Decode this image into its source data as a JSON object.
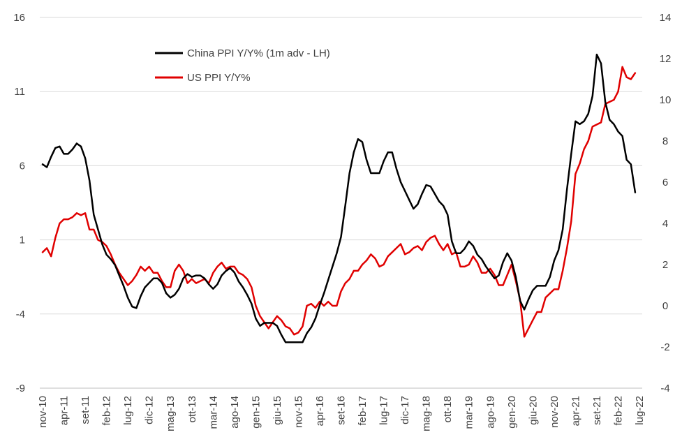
{
  "chart_data": {
    "type": "line",
    "title": "",
    "xlabel": "",
    "ylabel": "",
    "y2label": "",
    "x_tick_labels": [
      "nov-10",
      "apr-11",
      "set-11",
      "feb-12",
      "lug-12",
      "dic-12",
      "mag-13",
      "ott-13",
      "mar-14",
      "ago-14",
      "gen-15",
      "giu-15",
      "nov-15",
      "apr-16",
      "set-16",
      "feb-17",
      "lug-17",
      "dic-17",
      "mag-18",
      "ott-18",
      "mar-19",
      "ago-19",
      "gen-20",
      "giu-20",
      "nov-20",
      "apr-21",
      "set-21",
      "feb-22",
      "lug-22"
    ],
    "y_left": {
      "ticks": [
        16,
        11,
        6,
        1,
        -4,
        -9
      ],
      "ylim": [
        -9,
        16
      ]
    },
    "y_right": {
      "ticks": [
        14,
        12,
        10,
        8,
        6,
        4,
        2,
        0,
        -2,
        -4
      ],
      "ylim": [
        -4,
        14
      ]
    },
    "grid": true,
    "legend": {
      "position": "top-left",
      "entries": [
        "China PPI Y/Y% (1m adv - LH)",
        "US PPI Y/Y%"
      ]
    },
    "series": [
      {
        "name": "China PPI Y/Y% (1m adv - LH)",
        "axis": "left",
        "color": "#000000",
        "points": [
          [
            "nov-10",
            6.1
          ],
          [
            "dic-10",
            5.9
          ],
          [
            "gen-11",
            6.6
          ],
          [
            "feb-11",
            7.2
          ],
          [
            "mar-11",
            7.3
          ],
          [
            "apr-11",
            6.8
          ],
          [
            "mag-11",
            6.8
          ],
          [
            "giu-11",
            7.1
          ],
          [
            "lug-11",
            7.5
          ],
          [
            "ago-11",
            7.3
          ],
          [
            "set-11",
            6.5
          ],
          [
            "ott-11",
            5.0
          ],
          [
            "nov-11",
            2.7
          ],
          [
            "dic-11",
            1.7
          ],
          [
            "gen-12",
            0.7
          ],
          [
            "feb-12",
            0.0
          ],
          [
            "mar-12",
            -0.3
          ],
          [
            "apr-12",
            -0.7
          ],
          [
            "mag-12",
            -1.4
          ],
          [
            "giu-12",
            -2.1
          ],
          [
            "lug-12",
            -2.9
          ],
          [
            "ago-12",
            -3.5
          ],
          [
            "set-12",
            -3.6
          ],
          [
            "ott-12",
            -2.8
          ],
          [
            "nov-12",
            -2.2
          ],
          [
            "dic-12",
            -1.9
          ],
          [
            "gen-13",
            -1.6
          ],
          [
            "feb-13",
            -1.6
          ],
          [
            "mar-13",
            -1.9
          ],
          [
            "apr-13",
            -2.6
          ],
          [
            "mag-13",
            -2.9
          ],
          [
            "giu-13",
            -2.7
          ],
          [
            "lug-13",
            -2.3
          ],
          [
            "ago-13",
            -1.6
          ],
          [
            "set-13",
            -1.3
          ],
          [
            "ott-13",
            -1.5
          ],
          [
            "nov-13",
            -1.4
          ],
          [
            "dic-13",
            -1.4
          ],
          [
            "gen-14",
            -1.6
          ],
          [
            "feb-14",
            -2.0
          ],
          [
            "mar-14",
            -2.3
          ],
          [
            "apr-14",
            -2.0
          ],
          [
            "mag-14",
            -1.4
          ],
          [
            "giu-14",
            -1.1
          ],
          [
            "lug-14",
            -0.9
          ],
          [
            "ago-14",
            -1.2
          ],
          [
            "set-14",
            -1.8
          ],
          [
            "ott-14",
            -2.2
          ],
          [
            "nov-14",
            -2.7
          ],
          [
            "dic-14",
            -3.3
          ],
          [
            "gen-15",
            -4.3
          ],
          [
            "feb-15",
            -4.8
          ],
          [
            "mar-15",
            -4.6
          ],
          [
            "apr-15",
            -4.6
          ],
          [
            "mag-15",
            -4.6
          ],
          [
            "giu-15",
            -4.8
          ],
          [
            "lug-15",
            -5.4
          ],
          [
            "ago-15",
            -5.9
          ],
          [
            "set-15",
            -5.9
          ],
          [
            "ott-15",
            -5.9
          ],
          [
            "nov-15",
            -5.9
          ],
          [
            "dic-15",
            -5.9
          ],
          [
            "gen-16",
            -5.3
          ],
          [
            "feb-16",
            -4.9
          ],
          [
            "mar-16",
            -4.3
          ],
          [
            "apr-16",
            -3.4
          ],
          [
            "mag-16",
            -2.6
          ],
          [
            "giu-16",
            -1.7
          ],
          [
            "lug-16",
            -0.8
          ],
          [
            "ago-16",
            0.1
          ],
          [
            "set-16",
            1.2
          ],
          [
            "ott-16",
            3.3
          ],
          [
            "nov-16",
            5.5
          ],
          [
            "dic-16",
            6.9
          ],
          [
            "gen-17",
            7.8
          ],
          [
            "feb-17",
            7.6
          ],
          [
            "mar-17",
            6.4
          ],
          [
            "apr-17",
            5.5
          ],
          [
            "mag-17",
            5.5
          ],
          [
            "giu-17",
            5.5
          ],
          [
            "lug-17",
            6.3
          ],
          [
            "ago-17",
            6.9
          ],
          [
            "set-17",
            6.9
          ],
          [
            "ott-17",
            5.8
          ],
          [
            "nov-17",
            4.9
          ],
          [
            "dic-17",
            4.3
          ],
          [
            "gen-18",
            3.7
          ],
          [
            "feb-18",
            3.1
          ],
          [
            "mar-18",
            3.4
          ],
          [
            "apr-18",
            4.1
          ],
          [
            "mag-18",
            4.7
          ],
          [
            "giu-18",
            4.6
          ],
          [
            "lug-18",
            4.1
          ],
          [
            "ago-18",
            3.6
          ],
          [
            "set-18",
            3.3
          ],
          [
            "ott-18",
            2.7
          ],
          [
            "nov-18",
            0.9
          ],
          [
            "dic-18",
            0.1
          ],
          [
            "gen-19",
            0.1
          ],
          [
            "feb-19",
            0.4
          ],
          [
            "mar-19",
            0.9
          ],
          [
            "apr-19",
            0.6
          ],
          [
            "mag-19",
            0.0
          ],
          [
            "giu-19",
            -0.3
          ],
          [
            "lug-19",
            -0.8
          ],
          [
            "ago-19",
            -1.2
          ],
          [
            "set-19",
            -1.6
          ],
          [
            "ott-19",
            -1.4
          ],
          [
            "nov-19",
            -0.5
          ],
          [
            "dic-19",
            0.1
          ],
          [
            "gen-20",
            -0.4
          ],
          [
            "feb-20",
            -1.5
          ],
          [
            "mar-20",
            -3.1
          ],
          [
            "apr-20",
            -3.7
          ],
          [
            "mag-20",
            -3.0
          ],
          [
            "giu-20",
            -2.4
          ],
          [
            "lug-20",
            -2.1
          ],
          [
            "ago-20",
            -2.1
          ],
          [
            "set-20",
            -2.1
          ],
          [
            "ott-20",
            -1.5
          ],
          [
            "nov-20",
            -0.4
          ],
          [
            "dic-20",
            0.3
          ],
          [
            "gen-21",
            1.7
          ],
          [
            "feb-21",
            4.4
          ],
          [
            "mar-21",
            6.8
          ],
          [
            "apr-21",
            9.0
          ],
          [
            "mag-21",
            8.8
          ],
          [
            "giu-21",
            9.0
          ],
          [
            "lug-21",
            9.5
          ],
          [
            "ago-21",
            10.7
          ],
          [
            "set-21",
            13.5
          ],
          [
            "ott-21",
            12.9
          ],
          [
            "nov-21",
            10.3
          ],
          [
            "dic-21",
            9.1
          ],
          [
            "gen-22",
            8.8
          ],
          [
            "feb-22",
            8.3
          ],
          [
            "mar-22",
            8.0
          ],
          [
            "apr-22",
            6.4
          ],
          [
            "mag-22",
            6.1
          ],
          [
            "giu-22",
            4.2
          ]
        ]
      },
      {
        "name": "US PPI Y/Y%",
        "axis": "right",
        "color": "#e00000",
        "points": [
          [
            "nov-10",
            2.6
          ],
          [
            "dic-10",
            2.8
          ],
          [
            "gen-11",
            2.4
          ],
          [
            "feb-11",
            3.3
          ],
          [
            "mar-11",
            4.0
          ],
          [
            "apr-11",
            4.2
          ],
          [
            "mag-11",
            4.2
          ],
          [
            "giu-11",
            4.3
          ],
          [
            "lug-11",
            4.5
          ],
          [
            "ago-11",
            4.4
          ],
          [
            "set-11",
            4.5
          ],
          [
            "ott-11",
            3.7
          ],
          [
            "nov-11",
            3.7
          ],
          [
            "dic-11",
            3.2
          ],
          [
            "gen-12",
            3.1
          ],
          [
            "feb-12",
            2.9
          ],
          [
            "mar-12",
            2.5
          ],
          [
            "apr-12",
            2.0
          ],
          [
            "mag-12",
            1.6
          ],
          [
            "giu-12",
            1.3
          ],
          [
            "lug-12",
            1.0
          ],
          [
            "ago-12",
            1.2
          ],
          [
            "set-12",
            1.5
          ],
          [
            "ott-12",
            1.9
          ],
          [
            "nov-12",
            1.7
          ],
          [
            "dic-12",
            1.9
          ],
          [
            "gen-13",
            1.6
          ],
          [
            "feb-13",
            1.6
          ],
          [
            "mar-13",
            1.2
          ],
          [
            "apr-13",
            0.9
          ],
          [
            "mag-13",
            0.9
          ],
          [
            "giu-13",
            1.7
          ],
          [
            "lug-13",
            2.0
          ],
          [
            "ago-13",
            1.7
          ],
          [
            "set-13",
            1.1
          ],
          [
            "ott-13",
            1.3
          ],
          [
            "nov-13",
            1.1
          ],
          [
            "dic-13",
            1.2
          ],
          [
            "gen-14",
            1.3
          ],
          [
            "feb-14",
            1.1
          ],
          [
            "mar-14",
            1.6
          ],
          [
            "apr-14",
            1.9
          ],
          [
            "mag-14",
            2.1
          ],
          [
            "giu-14",
            1.8
          ],
          [
            "lug-14",
            1.9
          ],
          [
            "ago-14",
            1.9
          ],
          [
            "set-14",
            1.6
          ],
          [
            "ott-14",
            1.5
          ],
          [
            "nov-14",
            1.3
          ],
          [
            "dic-14",
            0.9
          ],
          [
            "gen-15",
            0.0
          ],
          [
            "feb-15",
            -0.5
          ],
          [
            "mar-15",
            -0.8
          ],
          [
            "apr-15",
            -1.1
          ],
          [
            "mag-15",
            -0.8
          ],
          [
            "giu-15",
            -0.5
          ],
          [
            "lug-15",
            -0.7
          ],
          [
            "ago-15",
            -1.0
          ],
          [
            "set-15",
            -1.1
          ],
          [
            "ott-15",
            -1.4
          ],
          [
            "nov-15",
            -1.3
          ],
          [
            "dic-15",
            -1.0
          ],
          [
            "gen-16",
            0.0
          ],
          [
            "feb-16",
            0.1
          ],
          [
            "mar-16",
            -0.1
          ],
          [
            "apr-16",
            0.2
          ],
          [
            "mag-16",
            0.0
          ],
          [
            "giu-16",
            0.2
          ],
          [
            "lug-16",
            0.0
          ],
          [
            "ago-16",
            0.0
          ],
          [
            "set-16",
            0.7
          ],
          [
            "ott-16",
            1.1
          ],
          [
            "nov-16",
            1.3
          ],
          [
            "dic-16",
            1.7
          ],
          [
            "gen-17",
            1.7
          ],
          [
            "feb-17",
            2.0
          ],
          [
            "mar-17",
            2.2
          ],
          [
            "apr-17",
            2.5
          ],
          [
            "mag-17",
            2.3
          ],
          [
            "giu-17",
            1.9
          ],
          [
            "lug-17",
            2.0
          ],
          [
            "ago-17",
            2.4
          ],
          [
            "set-17",
            2.6
          ],
          [
            "ott-17",
            2.8
          ],
          [
            "nov-17",
            3.0
          ],
          [
            "dic-17",
            2.5
          ],
          [
            "gen-18",
            2.6
          ],
          [
            "feb-18",
            2.8
          ],
          [
            "mar-18",
            2.9
          ],
          [
            "apr-18",
            2.7
          ],
          [
            "mag-18",
            3.1
          ],
          [
            "giu-18",
            3.3
          ],
          [
            "lug-18",
            3.4
          ],
          [
            "ago-18",
            3.0
          ],
          [
            "set-18",
            2.7
          ],
          [
            "ott-18",
            3.0
          ],
          [
            "nov-18",
            2.5
          ],
          [
            "dic-18",
            2.6
          ],
          [
            "gen-19",
            1.9
          ],
          [
            "feb-19",
            1.9
          ],
          [
            "mar-19",
            2.0
          ],
          [
            "apr-19",
            2.4
          ],
          [
            "mag-19",
            2.1
          ],
          [
            "giu-19",
            1.6
          ],
          [
            "lug-19",
            1.6
          ],
          [
            "ago-19",
            1.8
          ],
          [
            "set-19",
            1.5
          ],
          [
            "ott-19",
            1.0
          ],
          [
            "nov-19",
            1.0
          ],
          [
            "dic-19",
            1.5
          ],
          [
            "gen-20",
            2.0
          ],
          [
            "feb-20",
            1.2
          ],
          [
            "mar-20",
            0.3
          ],
          [
            "apr-20",
            -1.5
          ],
          [
            "mag-20",
            -1.1
          ],
          [
            "giu-20",
            -0.7
          ],
          [
            "lug-20",
            -0.3
          ],
          [
            "ago-20",
            -0.3
          ],
          [
            "set-20",
            0.4
          ],
          [
            "ott-20",
            0.6
          ],
          [
            "nov-20",
            0.8
          ],
          [
            "dic-20",
            0.8
          ],
          [
            "gen-21",
            1.7
          ],
          [
            "feb-21",
            2.8
          ],
          [
            "mar-21",
            4.1
          ],
          [
            "apr-21",
            6.4
          ],
          [
            "mag-21",
            6.9
          ],
          [
            "giu-21",
            7.6
          ],
          [
            "lug-21",
            8.0
          ],
          [
            "ago-21",
            8.7
          ],
          [
            "set-21",
            8.8
          ],
          [
            "ott-21",
            8.9
          ],
          [
            "nov-21",
            9.8
          ],
          [
            "dic-21",
            9.9
          ],
          [
            "gen-22",
            10.0
          ],
          [
            "feb-22",
            10.4
          ],
          [
            "mar-22",
            11.6
          ],
          [
            "apr-22",
            11.1
          ],
          [
            "mag-22",
            11.0
          ],
          [
            "giu-22",
            11.3
          ]
        ]
      }
    ]
  }
}
